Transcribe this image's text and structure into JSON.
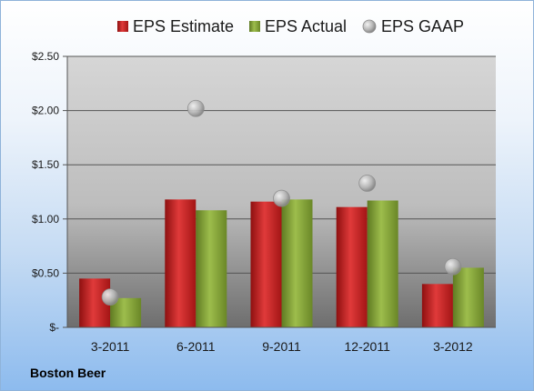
{
  "company_name": "Boston Beer",
  "colors": {
    "estimate": "#cc1f1f",
    "actual": "#8aab3a",
    "gaap": "#b8b8b8"
  },
  "chart_data": {
    "type": "bar",
    "title": "",
    "xlabel": "",
    "ylabel": "",
    "categories": [
      "3-2011",
      "6-2011",
      "9-2011",
      "12-2011",
      "3-2012"
    ],
    "series": [
      {
        "name": "EPS Estimate",
        "type": "bar",
        "values": [
          0.45,
          1.18,
          1.16,
          1.11,
          0.4
        ]
      },
      {
        "name": "EPS Actual",
        "type": "bar",
        "values": [
          0.27,
          1.08,
          1.18,
          1.17,
          0.55
        ]
      },
      {
        "name": "EPS GAAP",
        "type": "scatter",
        "values": [
          0.28,
          2.02,
          1.19,
          1.33,
          0.56
        ]
      }
    ],
    "ylim": [
      0,
      2.5
    ],
    "yticks": [
      0,
      0.5,
      1.0,
      1.5,
      2.0,
      2.5
    ],
    "ytick_labels": [
      "$-",
      "$0.50",
      "$1.00",
      "$1.50",
      "$2.00",
      "$2.50"
    ],
    "grid": true,
    "legend_position": "top"
  }
}
